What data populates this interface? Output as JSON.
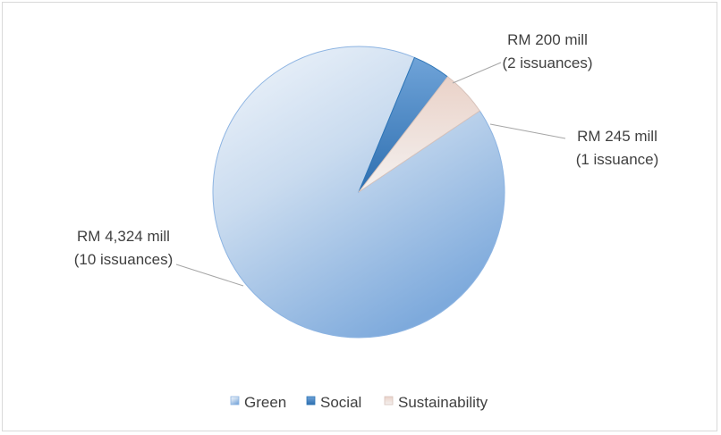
{
  "chart_data": {
    "type": "pie",
    "categories": [
      "Green",
      "Social",
      "Sustainability"
    ],
    "values": [
      4324,
      200,
      245
    ],
    "data_labels": [
      {
        "line1": "RM 4,324 mill",
        "line2": "(10 issuances)"
      },
      {
        "line1": "RM 200 mill",
        "line2": "(2 issuances)"
      },
      {
        "line1": "RM 245 mill",
        "line2": "(1 issuance)"
      }
    ],
    "legend": {
      "position": "bottom",
      "items": [
        "Green",
        "Social",
        "Sustainability"
      ]
    },
    "colors": {
      "green": "#8db4e2",
      "social": "#2e75b6",
      "sustainability": "#e6d6d0",
      "leader_line": "#a6a6a6",
      "border": "#d9d9d9"
    }
  }
}
